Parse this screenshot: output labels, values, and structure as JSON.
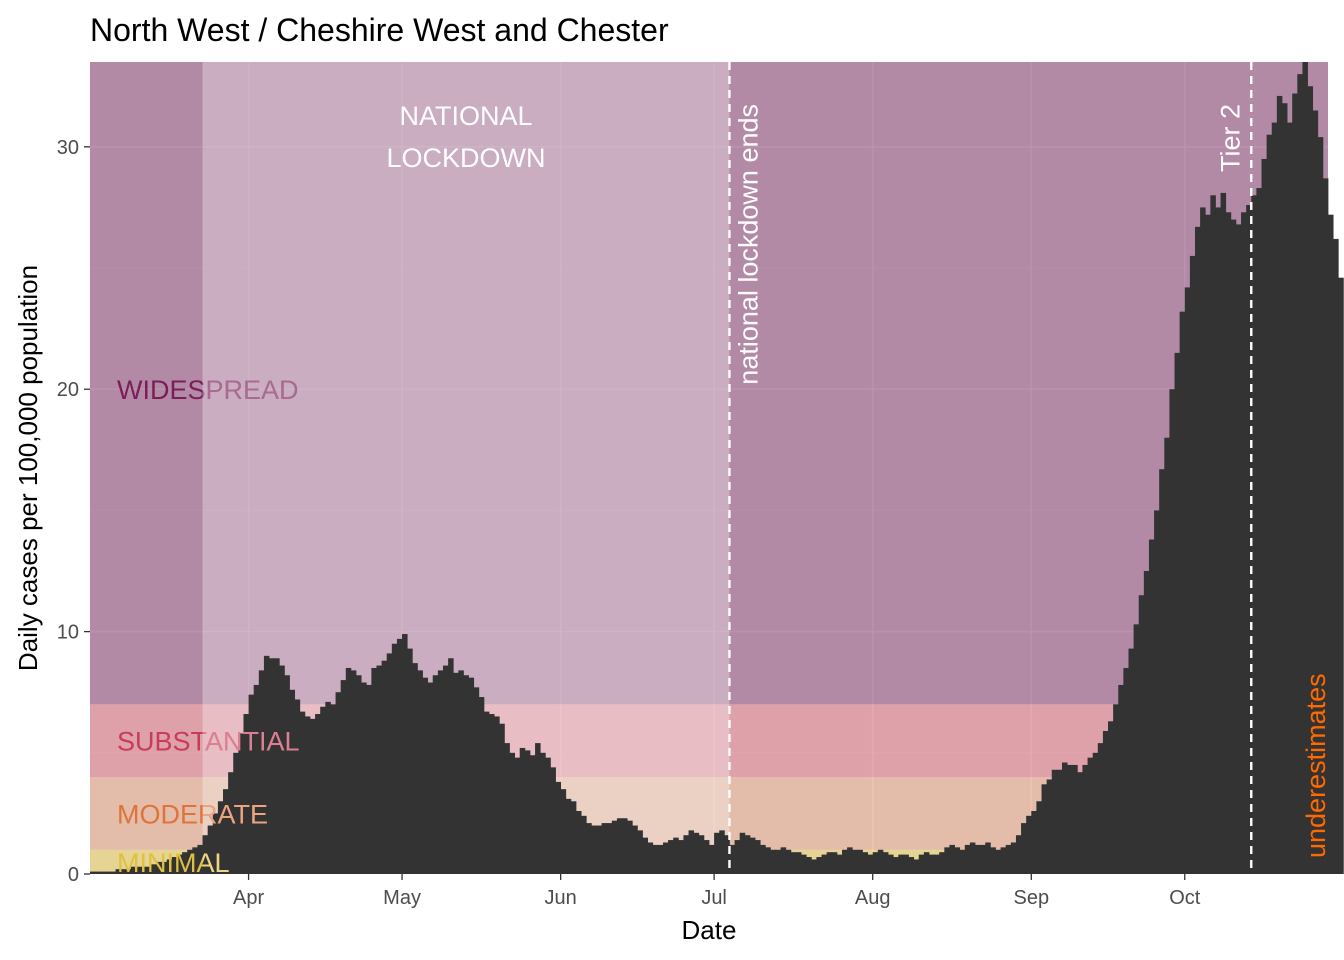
{
  "chart_data": {
    "type": "bar",
    "title": "North West / Cheshire West and Chester",
    "xlabel": "Date",
    "ylabel": "Daily cases per 100,000 population",
    "x_range": [
      "2020-03-01",
      "2020-10-29"
    ],
    "ylim": [
      0,
      33.5
    ],
    "yticks": [
      0,
      10,
      20,
      30
    ],
    "xticks": [
      {
        "date": "2020-04-01",
        "label": "Apr"
      },
      {
        "date": "2020-05-01",
        "label": "May"
      },
      {
        "date": "2020-06-01",
        "label": "Jun"
      },
      {
        "date": "2020-07-01",
        "label": "Jul"
      },
      {
        "date": "2020-08-01",
        "label": "Aug"
      },
      {
        "date": "2020-09-01",
        "label": "Sep"
      },
      {
        "date": "2020-10-01",
        "label": "Oct"
      }
    ],
    "grid": true,
    "start_date": "2020-03-01",
    "values": [
      0.1,
      0.1,
      0.1,
      0.1,
      0.1,
      0.2,
      0.2,
      0.2,
      0.3,
      0.3,
      0.3,
      0.3,
      0.4,
      0.5,
      0.5,
      0.6,
      0.7,
      0.8,
      0.9,
      1.0,
      1.1,
      1.2,
      1.6,
      2.0,
      2.5,
      3.0,
      3.5,
      4.2,
      5.0,
      5.8,
      6.6,
      7.4,
      7.8,
      8.4,
      9.0,
      8.9,
      8.9,
      8.6,
      8.2,
      7.6,
      7.2,
      6.7,
      6.5,
      6.4,
      6.6,
      6.9,
      7.1,
      7.0,
      7.5,
      8.0,
      8.5,
      8.4,
      8.2,
      7.9,
      7.8,
      8.5,
      8.6,
      8.8,
      9.1,
      9.5,
      9.7,
      9.9,
      9.3,
      8.7,
      8.4,
      8.1,
      7.9,
      8.2,
      8.4,
      8.6,
      8.9,
      8.3,
      8.4,
      8.2,
      8.1,
      7.7,
      7.3,
      6.7,
      6.6,
      6.5,
      6.2,
      5.4,
      5.0,
      4.8,
      5.2,
      5.1,
      4.9,
      5.4,
      5.0,
      4.8,
      4.4,
      3.8,
      3.5,
      3.1,
      3.0,
      2.6,
      2.4,
      2.1,
      2.0,
      2.0,
      2.1,
      2.1,
      2.2,
      2.3,
      2.3,
      2.2,
      2.0,
      1.8,
      1.5,
      1.3,
      1.2,
      1.2,
      1.3,
      1.4,
      1.5,
      1.4,
      1.6,
      1.8,
      1.7,
      1.6,
      1.4,
      1.2,
      1.7,
      1.8,
      1.6,
      1.2,
      1.4,
      1.7,
      1.6,
      1.5,
      1.4,
      1.2,
      1.1,
      1.0,
      1.0,
      1.1,
      1.0,
      0.9,
      0.9,
      0.8,
      0.7,
      0.6,
      0.7,
      0.8,
      0.9,
      0.9,
      0.8,
      1.0,
      1.1,
      1.0,
      1.0,
      0.9,
      0.8,
      0.9,
      1.0,
      0.9,
      0.8,
      0.7,
      0.8,
      0.8,
      0.7,
      0.6,
      0.8,
      0.9,
      0.8,
      0.8,
      0.9,
      1.1,
      1.2,
      1.1,
      1.0,
      1.2,
      1.3,
      1.2,
      1.2,
      1.3,
      1.1,
      1.0,
      1.1,
      1.2,
      1.3,
      1.6,
      2.1,
      2.4,
      2.6,
      3.0,
      3.7,
      3.9,
      4.3,
      4.3,
      4.6,
      4.5,
      4.5,
      4.2,
      4.5,
      4.8,
      5.0,
      5.4,
      5.9,
      6.3,
      7.0,
      7.8,
      8.5,
      9.3,
      10.3,
      11.5,
      12.5,
      13.8,
      15.0,
      16.7,
      18.0,
      20.0,
      21.5,
      23.2,
      24.2,
      25.5,
      26.7,
      27.5,
      27.2,
      28.0,
      27.5,
      28.1,
      27.3,
      27.0,
      26.8,
      27.3,
      27.6,
      28.0,
      28.3,
      29.5,
      30.5,
      31.0,
      32.1,
      31.8,
      31.0,
      32.2,
      33.0,
      33.5,
      32.5,
      31.5,
      30.4,
      28.7,
      27.2,
      26.2,
      24.6
    ],
    "bar_color": "#333333",
    "zones": [
      {
        "label": "MINIMAL",
        "from": 0,
        "to": 1,
        "color": "#e3c45a",
        "text_color": "#e0c040"
      },
      {
        "label": "MODERATE",
        "from": 1,
        "to": 4,
        "color": "#dd9e7e",
        "text_color": "#e0733c"
      },
      {
        "label": "SUBSTANTIAL",
        "from": 4,
        "to": 7,
        "color": "#d5707f",
        "text_color": "#c83c5a"
      },
      {
        "label": "WIDESPREAD",
        "from": 7,
        "to": 33.5,
        "color": "#8e4a78",
        "text_color": "#7a1e5a"
      }
    ],
    "lockdown_period": {
      "from": "2020-03-23",
      "to": "2020-07-04",
      "label_lines": [
        "NATIONAL",
        "LOCKDOWN"
      ]
    },
    "events": [
      {
        "date": "2020-07-04",
        "label": "national lockdown ends"
      },
      {
        "date": "2020-10-14",
        "label": "Tier 2"
      }
    ],
    "underestimates_from": "2020-10-14",
    "underestimates_label": "underestimates",
    "underestimates_color": "#ff6a00"
  }
}
